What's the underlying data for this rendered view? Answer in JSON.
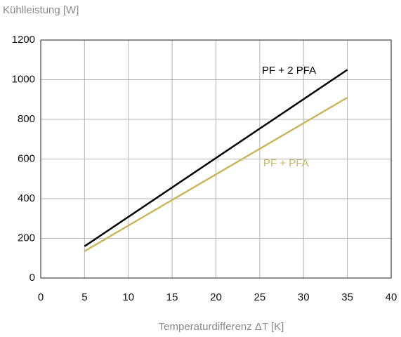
{
  "chart_data": {
    "type": "line",
    "ylabel": "Kühlleistung [W]",
    "xlabel": "Temperaturdifferenz ΔT [K]",
    "x": [
      5,
      35
    ],
    "series": [
      {
        "name": "PF + 2 PFA",
        "color": "#000000",
        "values": [
          160,
          1050
        ]
      },
      {
        "name": "PF + PFA",
        "color": "#c8b660",
        "values": [
          135,
          910
        ]
      }
    ],
    "xlim": [
      0,
      40
    ],
    "xticks": [
      0,
      5,
      10,
      15,
      20,
      25,
      30,
      35,
      40
    ],
    "ylim": [
      0,
      1200
    ],
    "yticks": [
      0,
      200,
      400,
      600,
      800,
      1000,
      1200
    ],
    "grid": true
  }
}
